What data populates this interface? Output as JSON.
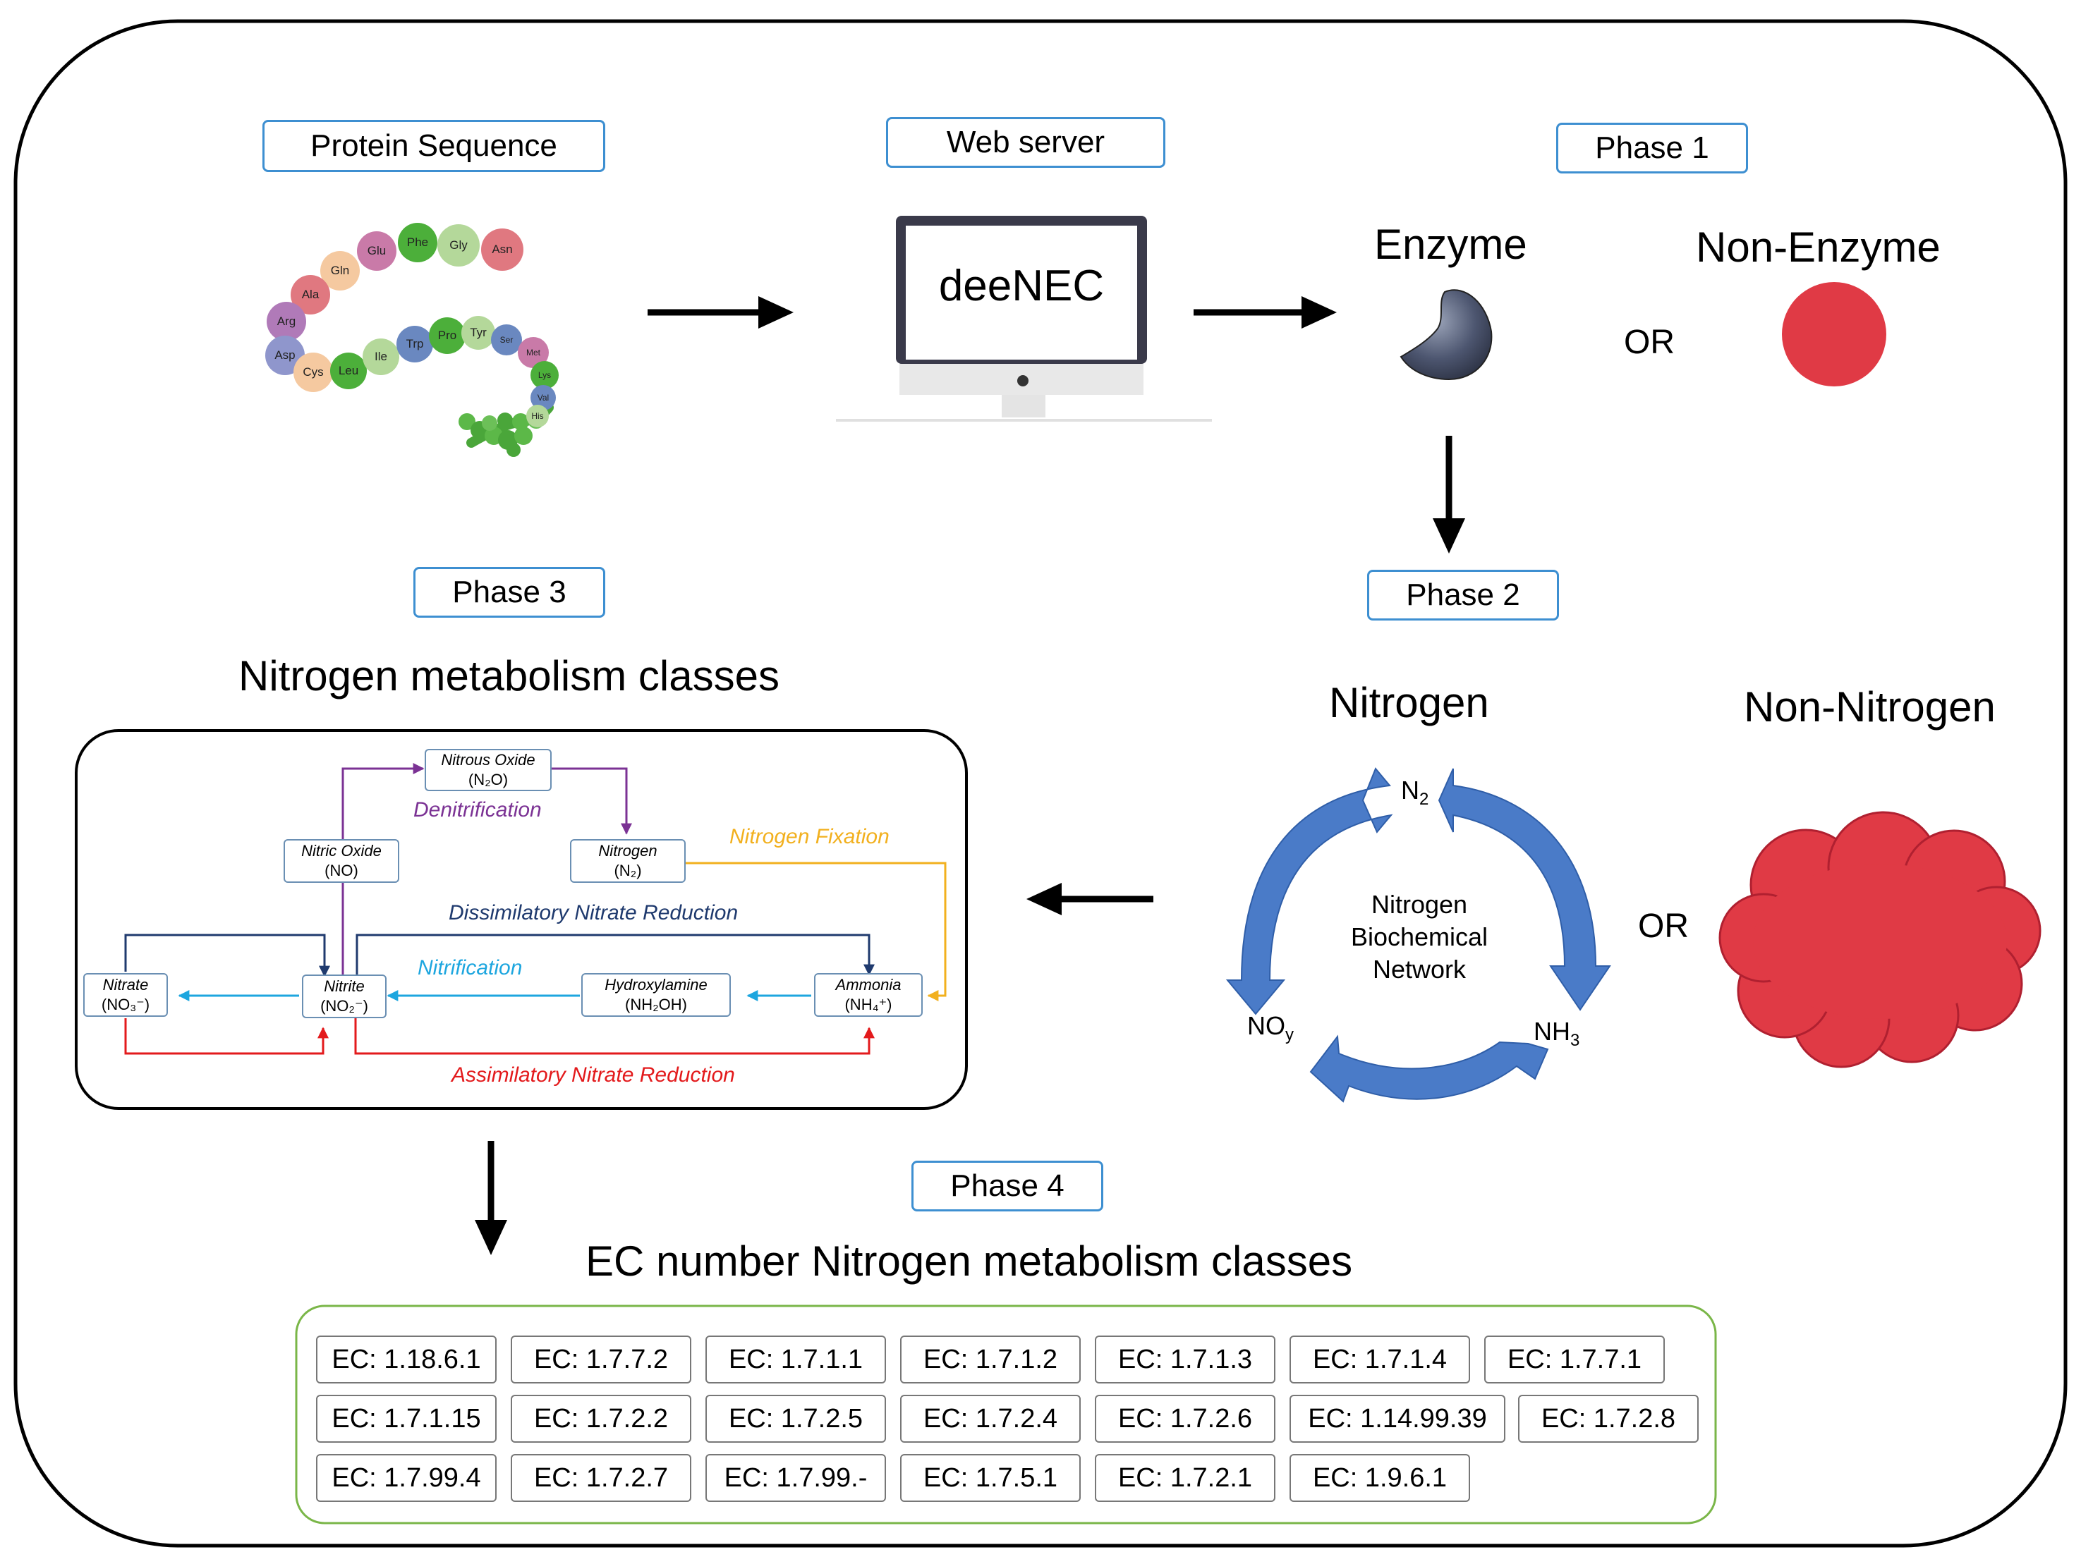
{
  "labels": {
    "protein_sequence": "Protein Sequence",
    "web_server": "Web server",
    "phase1": "Phase 1",
    "phase2": "Phase 2",
    "phase3": "Phase 3",
    "phase4": "Phase 4"
  },
  "monitor_text": "deeNEC",
  "phase1": {
    "enzyme": "Enzyme",
    "non_enzyme": "Non-Enzyme",
    "or": "OR"
  },
  "phase2": {
    "nitrogen": "Nitrogen",
    "non_nitrogen": "Non-Nitrogen",
    "or": "OR",
    "cycle_center": [
      "Nitrogen",
      "Biochemical",
      "Network"
    ],
    "n2": "N",
    "n2_sub": "2",
    "noy": "NO",
    "noy_sub": "y",
    "nh3": "NH",
    "nh3_sub": "3"
  },
  "phase3": {
    "title": "Nitrogen metabolism classes",
    "nodes": {
      "nitrous_oxide": {
        "name": "Nitrous Oxide",
        "formula": "(N₂O)"
      },
      "nitric_oxide": {
        "name": "Nitric Oxide",
        "formula": "(NO)"
      },
      "nitrogen": {
        "name": "Nitrogen",
        "formula": "(N₂)"
      },
      "nitrate": {
        "name": "Nitrate",
        "formula": "(NO₃⁻)"
      },
      "nitrite": {
        "name": "Nitrite",
        "formula": "(NO₂⁻)"
      },
      "hydroxylamine": {
        "name": "Hydroxylamine",
        "formula": "(NH₂OH)"
      },
      "ammonia": {
        "name": "Ammonia",
        "formula": "(NH₄⁺)"
      }
    },
    "pathways": {
      "denitrification": "Denitrification",
      "nitrogen_fixation": "Nitrogen Fixation",
      "dissimilatory": "Dissimilatory Nitrate Reduction",
      "nitrification": "Nitrification",
      "assimilatory": "Assimilatory Nitrate Reduction"
    },
    "colors": {
      "denitrification": "#7b3294",
      "nitrogen_fixation": "#f2b01e",
      "dissimilatory": "#1f3a6e",
      "nitrification": "#1da6df",
      "assimilatory": "#e31a1c"
    }
  },
  "phase4": {
    "title": "EC number Nitrogen metabolism classes",
    "rows": [
      [
        "EC: 1.18.6.1",
        "EC: 1.7.7.2",
        "EC: 1.7.1.1",
        "EC: 1.7.1.2",
        "EC: 1.7.1.3",
        "EC: 1.7.1.4",
        "EC: 1.7.7.1"
      ],
      [
        "EC: 1.7.1.15",
        "EC: 1.7.2.2",
        "EC: 1.7.2.5",
        "EC: 1.7.2.4",
        "EC: 1.7.2.6",
        "EC: 1.14.99.39",
        "EC: 1.7.2.8"
      ],
      [
        "EC: 1.7.99.4",
        "EC: 1.7.2.7",
        "EC: 1.7.99.-",
        "EC: 1.7.5.1",
        "EC: 1.7.2.1",
        "EC: 1.9.6.1"
      ]
    ]
  },
  "amino_acids": [
    "Asn",
    "Gly",
    "Phe",
    "Glu",
    "Gln",
    "Ala",
    "Arg",
    "Asp",
    "Cys",
    "Leu",
    "Ile",
    "Trp",
    "Pro",
    "Tyr",
    "Ser",
    "Met",
    "Lys",
    "Val",
    "His"
  ],
  "colors": {
    "accent_border": "#3d8fd1",
    "red": "#e03a45",
    "cycle_blue": "#4a7bc8",
    "phase4_border": "#7ab648"
  }
}
